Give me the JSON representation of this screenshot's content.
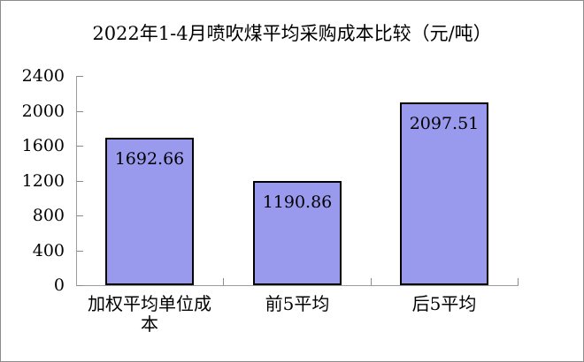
{
  "chart_data": {
    "type": "bar",
    "title": "2022年1-4月喷吹煤平均采购成本比较（元/吨）",
    "xlabel": "",
    "ylabel": "",
    "categories": [
      "加权平均单位成\n本",
      "前5平均",
      "后5平均"
    ],
    "values": [
      1692.66,
      1190.86,
      2097.51
    ],
    "value_labels": [
      "1692.66",
      "1190.86",
      "2097.51"
    ],
    "ylim": [
      0,
      2400
    ],
    "yticks": [
      0,
      400,
      800,
      1200,
      1600,
      2000,
      2400
    ],
    "grid": false,
    "legend": false,
    "tick_style": "inside",
    "colors": {
      "bar_fill": "#9999EE",
      "bar_border": "#000000",
      "axis_line": "#9c9c9c",
      "tick_mark": "#8a8a8a",
      "text": "#000000",
      "frame_border": "#8c8c8c",
      "background": "#ffffff"
    }
  }
}
